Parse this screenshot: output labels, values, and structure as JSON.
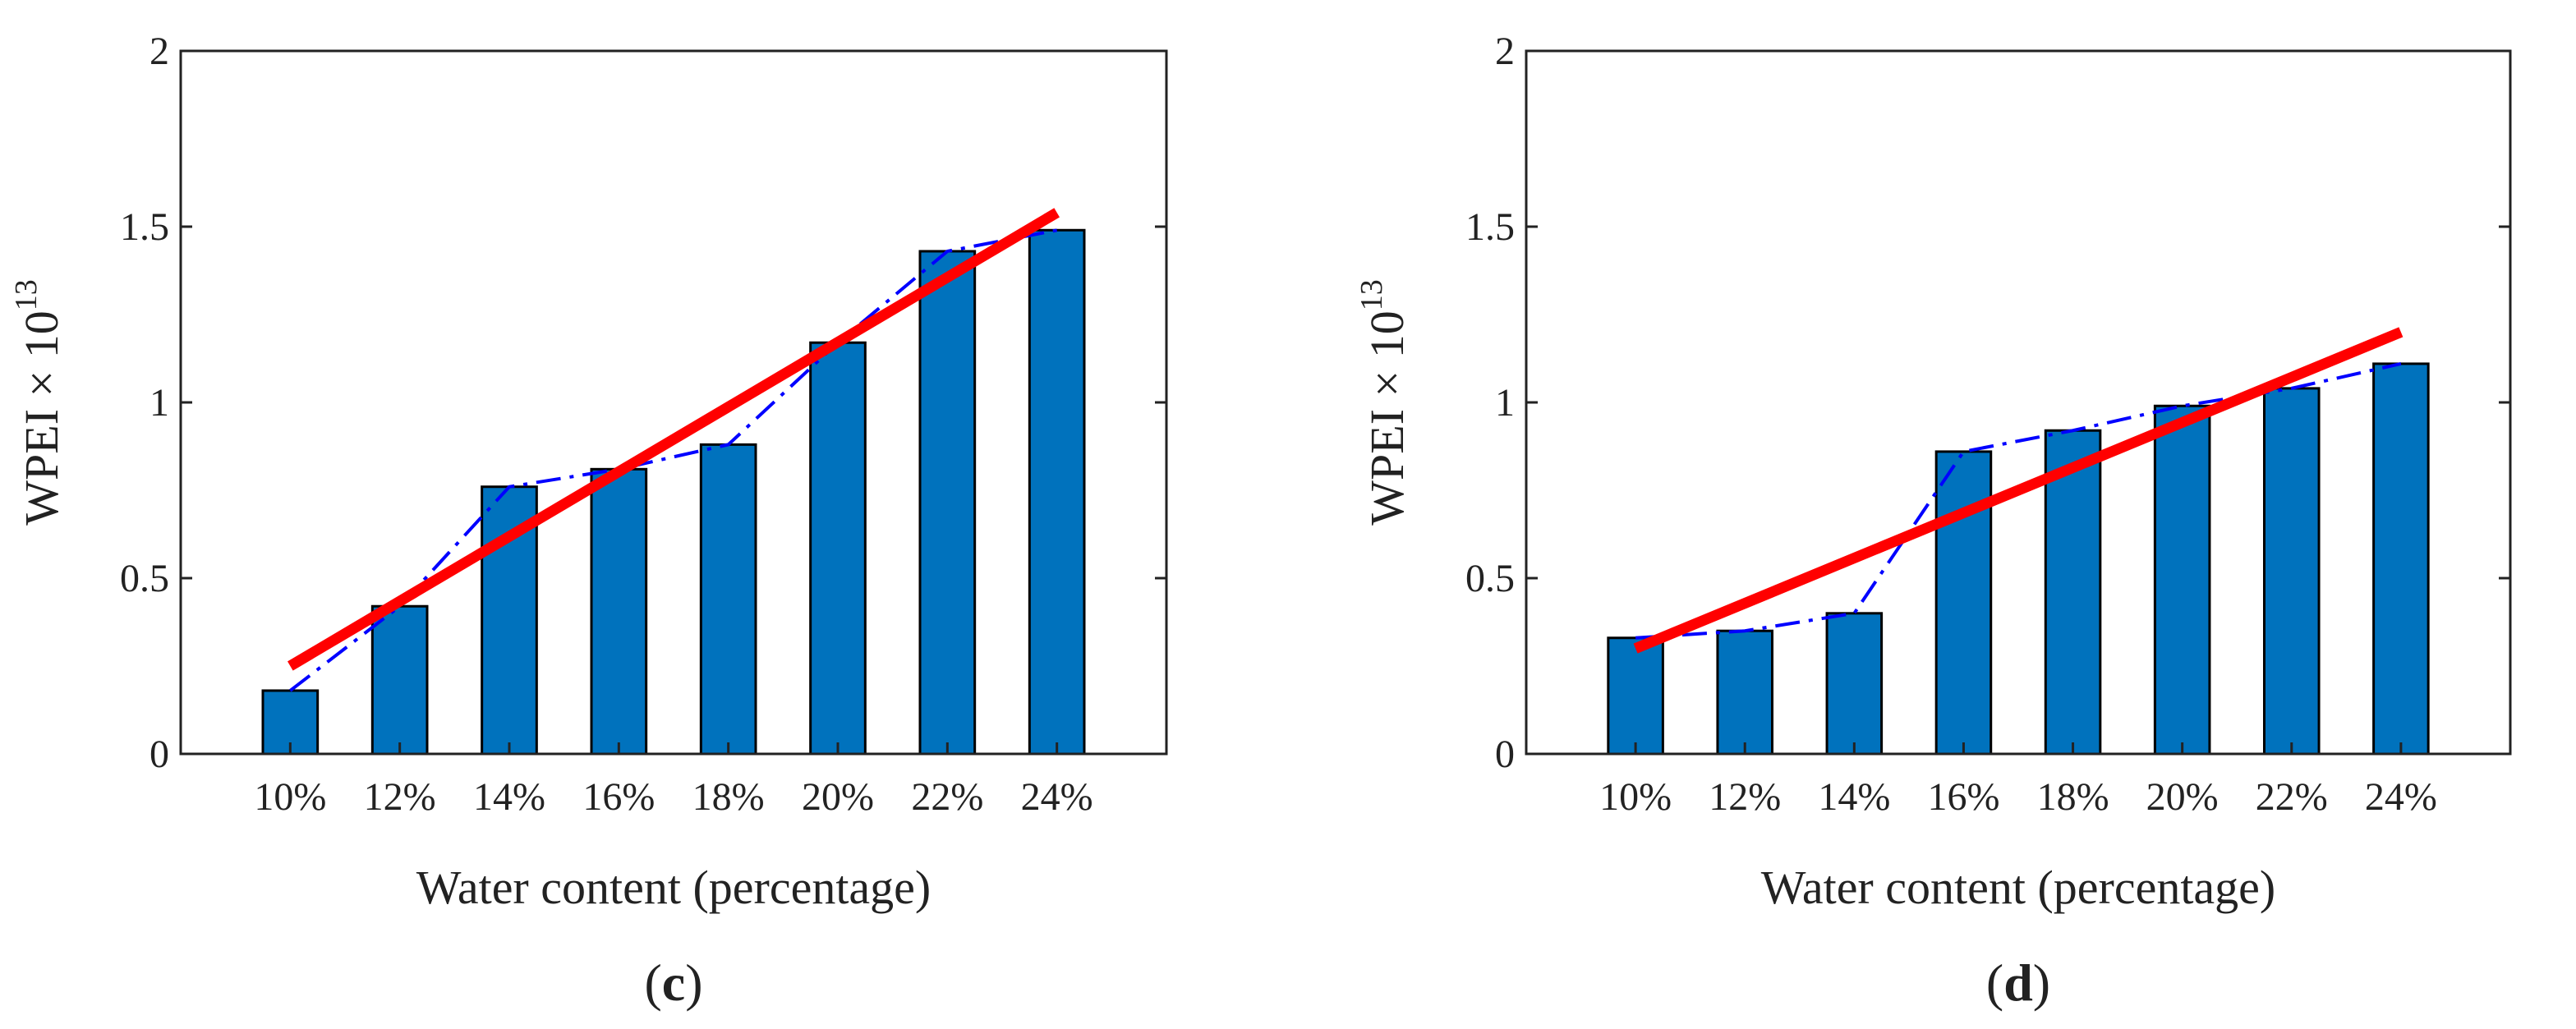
{
  "chart_data": [
    {
      "type": "bar",
      "panel": "c",
      "categories": [
        "10%",
        "12%",
        "14%",
        "16%",
        "18%",
        "20%",
        "22%",
        "24%"
      ],
      "values": [
        0.18,
        0.42,
        0.76,
        0.81,
        0.88,
        1.17,
        1.43,
        1.49
      ],
      "series": [
        {
          "name": "bars",
          "kind": "bar",
          "values": [
            0.18,
            0.42,
            0.76,
            0.81,
            0.88,
            1.17,
            1.43,
            1.49
          ]
        },
        {
          "name": "trend",
          "kind": "dash-dot line",
          "values": [
            0.18,
            0.42,
            0.76,
            0.81,
            0.88,
            1.17,
            1.43,
            1.49
          ]
        },
        {
          "name": "linear fit",
          "kind": "line",
          "start": 0.25,
          "end": 1.54
        }
      ],
      "xlabel": "Water content (percentage)",
      "ylabel_base": "WPEI × 10",
      "ylabel_exp": "13",
      "ylim": [
        0,
        2
      ],
      "yticks": [
        "0",
        "0.5",
        "1",
        "1.5",
        "2"
      ],
      "caption_open": "(",
      "caption_letter": "c",
      "caption_close": ")"
    },
    {
      "type": "bar",
      "panel": "d",
      "categories": [
        "10%",
        "12%",
        "14%",
        "16%",
        "18%",
        "20%",
        "22%",
        "24%"
      ],
      "values": [
        0.33,
        0.35,
        0.4,
        0.86,
        0.92,
        0.99,
        1.04,
        1.11
      ],
      "series": [
        {
          "name": "bars",
          "kind": "bar",
          "values": [
            0.33,
            0.35,
            0.4,
            0.86,
            0.92,
            0.99,
            1.04,
            1.11
          ]
        },
        {
          "name": "trend",
          "kind": "dash-dot line",
          "values": [
            0.33,
            0.35,
            0.4,
            0.86,
            0.92,
            0.99,
            1.04,
            1.11
          ]
        },
        {
          "name": "linear fit",
          "kind": "line",
          "start": 0.3,
          "end": 1.2
        }
      ],
      "xlabel": "Water content (percentage)",
      "ylabel_base": "WPEI × 10",
      "ylabel_exp": "13",
      "ylim": [
        0,
        2
      ],
      "yticks": [
        "0",
        "0.5",
        "1",
        "1.5",
        "2"
      ],
      "caption_open": "(",
      "caption_letter": "d",
      "caption_close": ")"
    }
  ],
  "colors": {
    "bar_fill": "#0072BD",
    "bar_edge": "#000000",
    "trend": "#0000FF",
    "fit": "#FF0000",
    "axis": "#222222"
  }
}
